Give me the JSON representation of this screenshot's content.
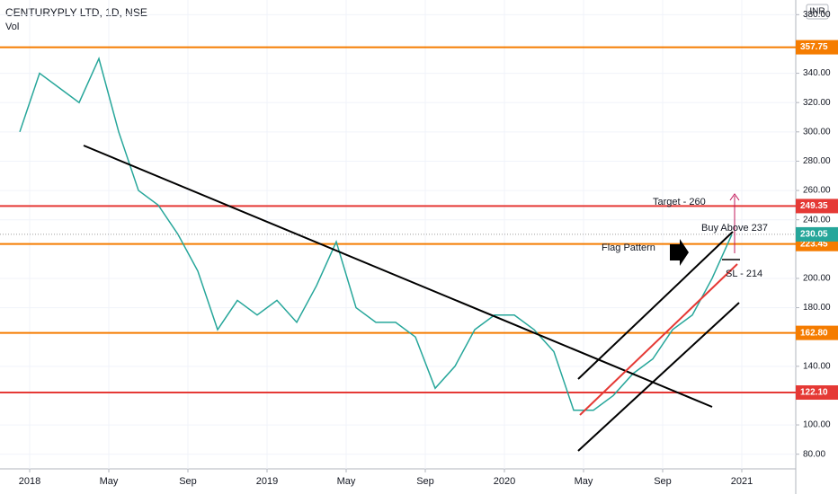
{
  "chart_data": {
    "type": "line",
    "title": "CENTURYPLY LTD, 1D, NSE",
    "subtitle": "Vol",
    "currency": "INR",
    "series": [
      {
        "name": "CENTURYPLY",
        "color": "#26a69a",
        "x": [
          "2017-12",
          "2018-01",
          "2018-02",
          "2018-03",
          "2018-04",
          "2018-05",
          "2018-06",
          "2018-07",
          "2018-08",
          "2018-09",
          "2018-10",
          "2018-11",
          "2018-12",
          "2019-01",
          "2019-02",
          "2019-03",
          "2019-04",
          "2019-05",
          "2019-06",
          "2019-07",
          "2019-08",
          "2019-09",
          "2019-10",
          "2019-11",
          "2019-12",
          "2020-01",
          "2020-02",
          "2020-03",
          "2020-04",
          "2020-05",
          "2020-06",
          "2020-07",
          "2020-08",
          "2020-09",
          "2020-10",
          "2020-11",
          "2020-12"
        ],
        "values": [
          300,
          340,
          330,
          320,
          350,
          300,
          260,
          250,
          230,
          205,
          165,
          185,
          175,
          185,
          170,
          195,
          225,
          180,
          170,
          170,
          160,
          125,
          140,
          165,
          175,
          175,
          165,
          150,
          110,
          110,
          120,
          135,
          145,
          165,
          175,
          200,
          230.05
        ]
      }
    ],
    "levels": [
      {
        "value": 357.75,
        "color": "#f57c00"
      },
      {
        "value": 249.35,
        "color": "#e53935"
      },
      {
        "value": 223.45,
        "color": "#f57c00"
      },
      {
        "value": 162.8,
        "label": "162.80",
        "color": "#f57c00"
      },
      {
        "value": 122.1,
        "label": "122.10",
        "color": "#e53935"
      }
    ],
    "annotations": [
      "Target - 260",
      "Buy Above 237",
      "Flag Pattern",
      "SL - 214"
    ],
    "ylim": [
      70,
      390
    ],
    "yticks": [
      {
        "value": 80,
        "label": "80.00"
      },
      {
        "value": 100,
        "label": "100.00"
      },
      {
        "value": 140,
        "label": "140.00"
      },
      {
        "value": 180,
        "label": "180.00"
      },
      {
        "value": 200,
        "label": "200.00"
      },
      {
        "value": 240,
        "label": "240.00"
      },
      {
        "value": 260,
        "label": "260.00"
      },
      {
        "value": 280,
        "label": "280.00"
      },
      {
        "value": 300,
        "label": "300.00"
      },
      {
        "value": 320,
        "label": "320.00"
      },
      {
        "value": 340,
        "label": "340.00"
      },
      {
        "value": 380,
        "label": "380.00"
      }
    ],
    "xticks": [
      {
        "value": "2018-01",
        "label": "2018"
      },
      {
        "value": "2018-05",
        "label": "May"
      },
      {
        "value": "2018-09",
        "label": "Sep"
      },
      {
        "value": "2019-01",
        "label": "2019"
      },
      {
        "value": "2019-05",
        "label": "May"
      },
      {
        "value": "2019-09",
        "label": "Sep"
      },
      {
        "value": "2020-01",
        "label": "2020"
      },
      {
        "value": "2020-05",
        "label": "May"
      },
      {
        "value": "2020-09",
        "label": "Sep"
      },
      {
        "value": "2021-01",
        "label": "2021"
      }
    ],
    "grid": true
  }
}
